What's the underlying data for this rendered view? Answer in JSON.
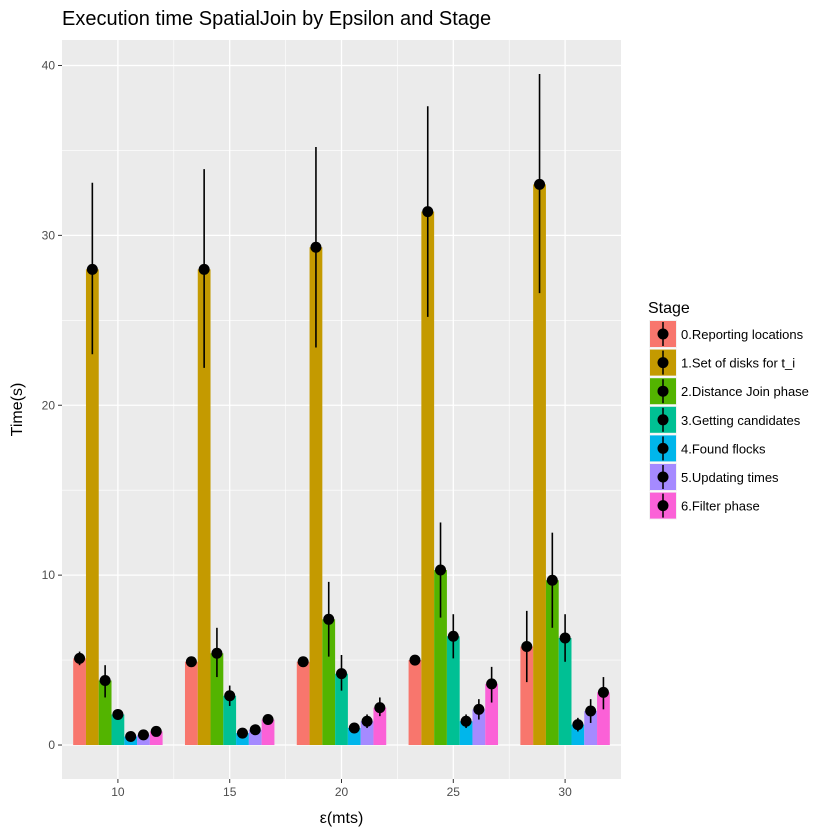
{
  "chart_data": {
    "type": "bar",
    "title": "Execution time SpatialJoin by Epsilon and Stage",
    "xlabel": "ε(mts)",
    "ylabel": "Time(s)",
    "categories": [
      "10",
      "15",
      "20",
      "25",
      "30"
    ],
    "ylim": [
      -2,
      41.5
    ],
    "yticks": [
      0,
      10,
      20,
      30,
      40
    ],
    "grid": true,
    "legend": {
      "title": "Stage",
      "position": "right"
    },
    "series": [
      {
        "name": "0.Reporting locations",
        "color": "#F8766D",
        "values": [
          5.1,
          4.9,
          4.9,
          5.0,
          5.8
        ],
        "err_low": [
          4.7,
          4.8,
          4.8,
          4.9,
          3.7
        ],
        "err_high": [
          5.5,
          5.0,
          5.0,
          5.1,
          7.9
        ]
      },
      {
        "name": "1.Set of disks for t_i",
        "color": "#C49A00",
        "values": [
          28.0,
          28.0,
          29.3,
          31.4,
          33.0
        ],
        "err_low": [
          23.0,
          22.2,
          23.4,
          25.2,
          26.6
        ],
        "err_high": [
          33.1,
          33.9,
          35.2,
          37.6,
          39.5
        ]
      },
      {
        "name": "2.Distance Join phase",
        "color": "#53B400",
        "values": [
          3.8,
          5.4,
          7.4,
          10.3,
          9.7
        ],
        "err_low": [
          2.8,
          4.0,
          5.2,
          7.5,
          6.9
        ],
        "err_high": [
          4.7,
          6.9,
          9.6,
          13.1,
          12.5
        ]
      },
      {
        "name": "3.Getting candidates",
        "color": "#00C094",
        "values": [
          1.8,
          2.9,
          4.2,
          6.4,
          6.3
        ],
        "err_low": [
          1.5,
          2.3,
          3.2,
          5.1,
          4.9
        ],
        "err_high": [
          2.1,
          3.5,
          5.3,
          7.7,
          7.7
        ]
      },
      {
        "name": "4.Found flocks",
        "color": "#00B6EB",
        "values": [
          0.5,
          0.7,
          1.0,
          1.4,
          1.2
        ],
        "err_low": [
          0.4,
          0.6,
          0.7,
          1.0,
          0.8
        ],
        "err_high": [
          0.6,
          0.8,
          1.3,
          1.8,
          1.6
        ]
      },
      {
        "name": "5.Updating times",
        "color": "#A58AFF",
        "values": [
          0.6,
          0.9,
          1.4,
          2.1,
          2.0
        ],
        "err_low": [
          0.5,
          0.8,
          1.0,
          1.5,
          1.3
        ],
        "err_high": [
          0.7,
          1.0,
          1.8,
          2.7,
          2.7
        ]
      },
      {
        "name": "6.Filter phase",
        "color": "#FB61D7",
        "values": [
          0.8,
          1.5,
          2.2,
          3.6,
          3.1
        ],
        "err_low": [
          0.7,
          1.3,
          1.7,
          2.5,
          2.1
        ],
        "err_high": [
          0.9,
          1.7,
          2.8,
          4.6,
          4.0
        ]
      }
    ],
    "colors": {
      "panel": "#EBEBEB",
      "grid": "#FFFFFF",
      "point": "#000000"
    }
  }
}
